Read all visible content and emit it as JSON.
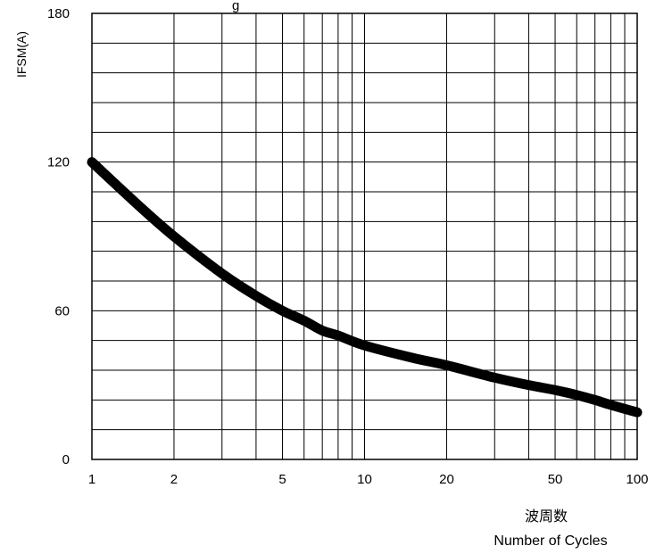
{
  "chart_data": {
    "type": "line",
    "title": "g",
    "xlabel": "Number of Cycles",
    "xlabel_cn": "波周数",
    "ylabel": "IFSM(A)",
    "x_scale": "log",
    "xlim": [
      1,
      100
    ],
    "ylim": [
      0,
      180
    ],
    "x_ticks": [
      1,
      2,
      5,
      10,
      20,
      50,
      100
    ],
    "x_tick_labels": [
      "1",
      "2",
      "5",
      "10",
      "20",
      "50",
      "100"
    ],
    "y_ticks": [
      0,
      60,
      120,
      180
    ],
    "y_tick_labels": [
      "0",
      "60",
      "120",
      "180"
    ],
    "y_minor_step": 12,
    "grid": true,
    "line_color": "#000000",
    "series": [
      {
        "x": [
          1,
          1.5,
          2,
          3,
          4,
          5,
          6,
          7,
          8,
          10,
          15,
          20,
          30,
          40,
          50,
          60,
          70,
          80,
          100
        ],
        "y": [
          120,
          102,
          90,
          75,
          66,
          60,
          56,
          52,
          50,
          46,
          41,
          38,
          33,
          30,
          28,
          26,
          24,
          22,
          19
        ]
      }
    ]
  }
}
